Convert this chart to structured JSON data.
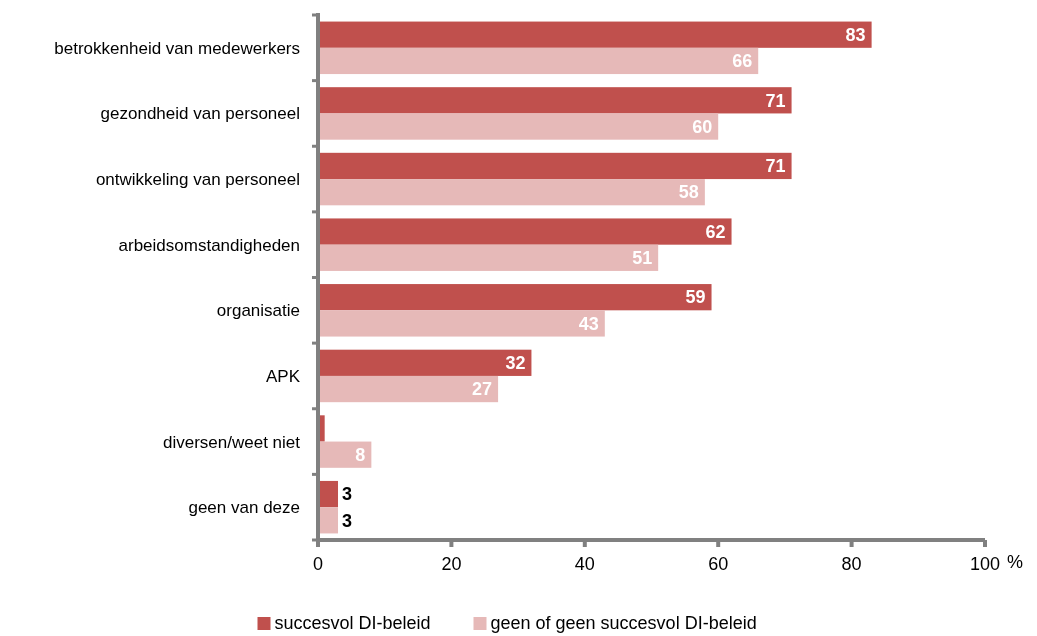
{
  "chart_data": {
    "type": "bar",
    "orientation": "horizontal",
    "xlabel": "%",
    "categories": [
      "betrokkenheid van medewerkers",
      "gezondheid van personeel",
      "ontwikkeling van personeel",
      "arbeidsomstandigheden",
      "organisatie",
      "APK",
      "diversen/weet niet",
      "geen van deze"
    ],
    "series": [
      {
        "name": "succesvol DI-beleid",
        "color": "#c0504d",
        "values": [
          83,
          71,
          71,
          62,
          59,
          32,
          1,
          3
        ],
        "value_labels": [
          "83",
          "71",
          "71",
          "62",
          "59",
          "32",
          null,
          "3"
        ]
      },
      {
        "name": "geen of geen succesvol DI-beleid",
        "color": "#e6b9b8",
        "values": [
          66,
          60,
          58,
          51,
          43,
          27,
          8,
          3
        ],
        "value_labels": [
          "66",
          "60",
          "58",
          "51",
          "43",
          "27",
          "8",
          "3"
        ]
      }
    ],
    "xlim": [
      0,
      100
    ],
    "xticks": [
      0,
      20,
      40,
      60,
      80,
      100
    ],
    "grid": false,
    "legend": "bottom"
  }
}
